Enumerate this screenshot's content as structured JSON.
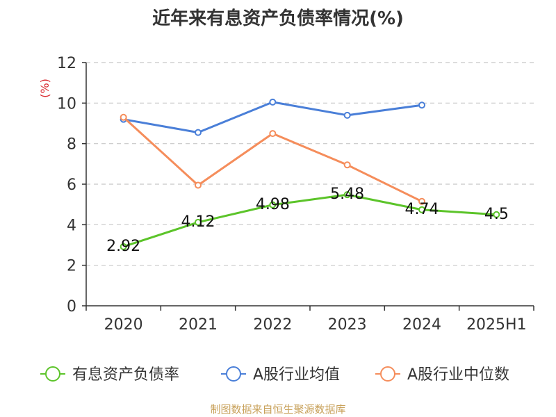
{
  "chart_data": {
    "type": "line",
    "title": "近年来有息资产负债率情况(%)",
    "ylabel": "(%)",
    "xlabel": "",
    "categories": [
      "2020",
      "2021",
      "2022",
      "2023",
      "2024",
      "2025H1"
    ],
    "ylim": [
      0,
      12
    ],
    "yticks": [
      0,
      2,
      4,
      6,
      8,
      10,
      12
    ],
    "grid": true,
    "legend_position": "bottom",
    "series": [
      {
        "name": "有息资产负债率",
        "color": "#5cc42a",
        "values": [
          2.92,
          4.12,
          4.98,
          5.48,
          4.74,
          4.5
        ],
        "data_labels": [
          "2.92",
          "4.12",
          "4.98",
          "5.48",
          "4.74",
          "4.5"
        ]
      },
      {
        "name": "A股行业均值",
        "color": "#4a7fd8",
        "values": [
          9.2,
          8.55,
          10.05,
          9.4,
          9.9,
          null
        ]
      },
      {
        "name": "A股行业中位数",
        "color": "#f58d5b",
        "values": [
          9.3,
          5.95,
          8.5,
          6.95,
          5.15,
          null
        ]
      }
    ]
  },
  "colors": {
    "axis": "#333333",
    "grid": "#c8c8c8",
    "ylabel": "#d9262c",
    "source": "#c8a15a"
  },
  "footer": {
    "source": "制图数据来自恒生聚源数据库"
  }
}
